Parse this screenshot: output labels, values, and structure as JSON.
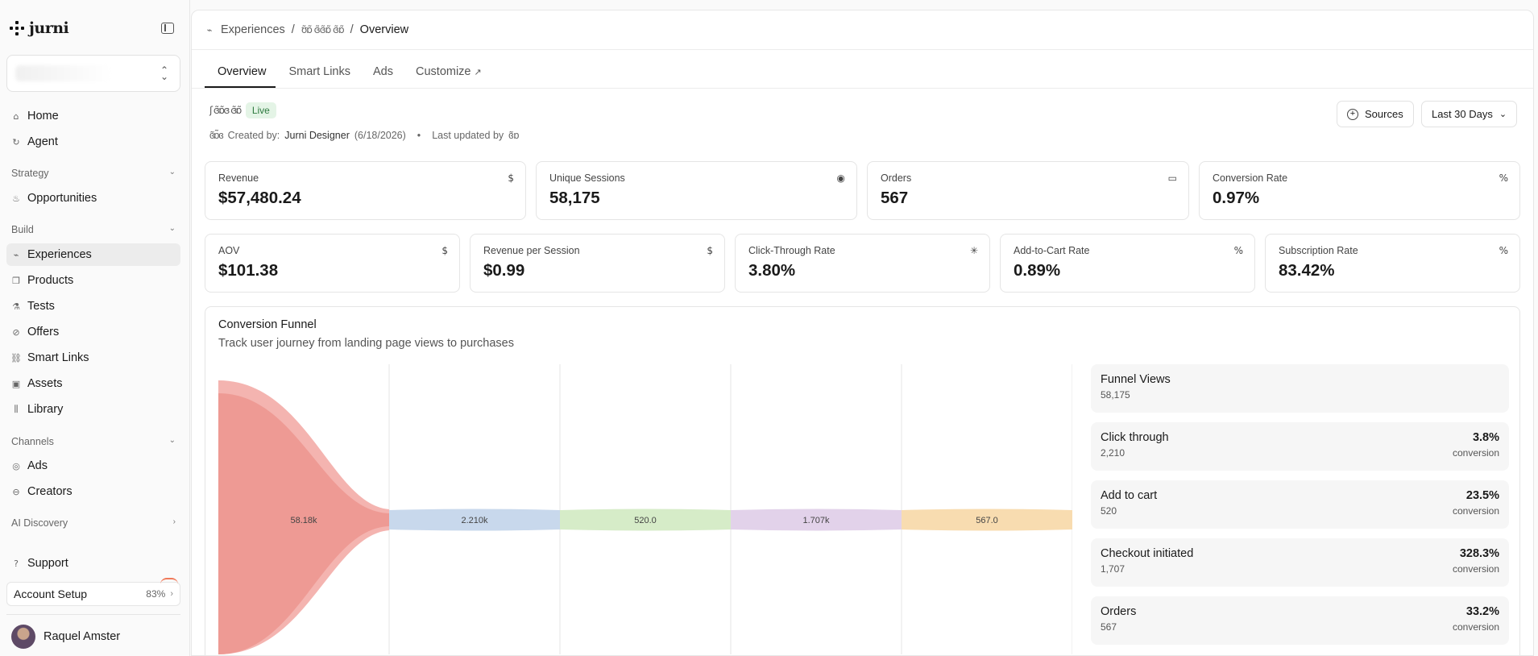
{
  "app": {
    "name": "jurni"
  },
  "sidebar": {
    "top_items": [
      {
        "label": "Home",
        "icon": "home-icon"
      },
      {
        "label": "Agent",
        "icon": "agent-icon"
      }
    ],
    "sections": [
      {
        "label": "Strategy",
        "items": [
          {
            "label": "Opportunities",
            "icon": "flame-icon"
          }
        ]
      },
      {
        "label": "Build",
        "items": [
          {
            "label": "Experiences",
            "icon": "route-icon",
            "active": true
          },
          {
            "label": "Products",
            "icon": "box-icon"
          },
          {
            "label": "Tests",
            "icon": "flask-icon"
          },
          {
            "label": "Offers",
            "icon": "tag-icon"
          },
          {
            "label": "Smart Links",
            "icon": "link-icon"
          },
          {
            "label": "Assets",
            "icon": "image-icon"
          },
          {
            "label": "Library",
            "icon": "library-icon"
          }
        ]
      },
      {
        "label": "Channels",
        "items": [
          {
            "label": "Ads",
            "icon": "ads-icon"
          },
          {
            "label": "Creators",
            "icon": "creators-icon"
          }
        ]
      }
    ],
    "ai_discovery": "AI Discovery",
    "support": "Support",
    "account_setup": {
      "label": "Account Setup",
      "progress": "83%"
    },
    "user": {
      "name": "Raquel Amster"
    }
  },
  "breadcrumb": {
    "root": "Experiences",
    "current": "Overview"
  },
  "tabs": [
    "Overview",
    "Smart Links",
    "Ads",
    "Customize"
  ],
  "experience": {
    "status": "Live",
    "created_label": "Created by:",
    "created_by": "Jurni Designer",
    "created_date": "(6/18/2026)",
    "updated_label": "Last updated by"
  },
  "controls": {
    "sources": "Sources",
    "date_range": "Last 30 Days"
  },
  "metrics_row1": [
    {
      "label": "Revenue",
      "value": "$57,480.24",
      "icon": "dollar-icon"
    },
    {
      "label": "Unique Sessions",
      "value": "58,175",
      "icon": "eye-icon"
    },
    {
      "label": "Orders",
      "value": "567",
      "icon": "card-icon"
    },
    {
      "label": "Conversion Rate",
      "value": "0.97%",
      "icon": "percent-icon"
    }
  ],
  "metrics_row2": [
    {
      "label": "AOV",
      "value": "$101.38",
      "icon": "dollar-icon"
    },
    {
      "label": "Revenue per Session",
      "value": "$0.99",
      "icon": "dollar-icon"
    },
    {
      "label": "Click-Through Rate",
      "value": "3.80%",
      "icon": "click-icon"
    },
    {
      "label": "Add-to-Cart Rate",
      "value": "0.89%",
      "icon": "percent-icon"
    },
    {
      "label": "Subscription Rate",
      "value": "83.42%",
      "icon": "percent-icon"
    }
  ],
  "funnel": {
    "title": "Conversion Funnel",
    "subtitle": "Track user journey from landing page views to purchases",
    "flow_labels": [
      "58.18k",
      "2.210k",
      "520.0",
      "1.707k",
      "567.0"
    ],
    "colors": [
      "#f4b4b0",
      "#c8d8ec",
      "#d6ecc8",
      "#e2d2ea",
      "#f8dcb0"
    ],
    "stages": [
      {
        "name": "Funnel Views",
        "count": "58,175",
        "rate": "",
        "rate_label": ""
      },
      {
        "name": "Click through",
        "count": "2,210",
        "rate": "3.8%",
        "rate_label": "conversion"
      },
      {
        "name": "Add to cart",
        "count": "520",
        "rate": "23.5%",
        "rate_label": "conversion"
      },
      {
        "name": "Checkout initiated",
        "count": "1,707",
        "rate": "328.3%",
        "rate_label": "conversion"
      },
      {
        "name": "Orders",
        "count": "567",
        "rate": "33.2%",
        "rate_label": "conversion"
      }
    ]
  }
}
